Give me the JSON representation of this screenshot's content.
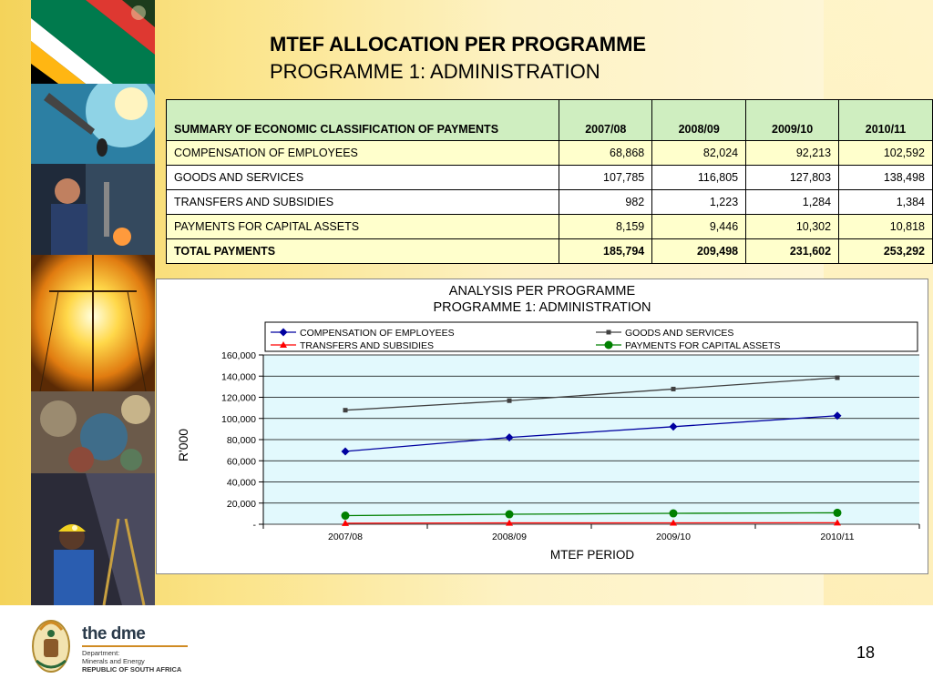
{
  "slide": {
    "title": "MTEF ALLOCATION PER PROGRAMME",
    "subtitle": "PROGRAMME 1: ADMINISTRATION",
    "page_number": "18"
  },
  "footer": {
    "brand_prefix": "the ",
    "brand_name": "dme",
    "dept_line1": "Department:",
    "dept_line2": "Minerals and Energy",
    "dept_line3": "REPUBLIC OF SOUTH AFRICA"
  },
  "table": {
    "header": "SUMMARY OF ECONOMIC CLASSIFICATION OF PAYMENTS",
    "columns": [
      "2007/08",
      "2008/09",
      "2009/10",
      "2010/11"
    ],
    "rows": [
      {
        "label": "COMPENSATION OF EMPLOYEES",
        "values": [
          "68,868",
          "82,024",
          "92,213",
          "102,592"
        ]
      },
      {
        "label": "GOODS AND SERVICES",
        "values": [
          "107,785",
          "116,805",
          "127,803",
          "138,498"
        ]
      },
      {
        "label": "TRANSFERS AND SUBSIDIES",
        "values": [
          "982",
          "1,223",
          "1,284",
          "1,384"
        ]
      },
      {
        "label": "PAYMENTS FOR CAPITAL ASSETS",
        "values": [
          "8,159",
          "9,446",
          "10,302",
          "10,818"
        ]
      }
    ],
    "total": {
      "label": "TOTAL PAYMENTS",
      "values": [
        "185,794",
        "209,498",
        "231,602",
        "253,292"
      ]
    }
  },
  "colors": {
    "header_green": "#cfeec0",
    "row_yellow": "#ffffcc",
    "plot_bg": "#e2f9fd",
    "compensation": "#0000a0",
    "goods": "#404040",
    "transfers": "#ff0000",
    "capital": "#008000"
  },
  "chart_data": {
    "type": "line",
    "title": "ANALYSIS PER PROGRAMME",
    "subtitle": "PROGRAMME 1: ADMINISTRATION",
    "xlabel": "MTEF PERIOD",
    "ylabel": "R'000",
    "categories": [
      "2007/08",
      "2008/09",
      "2009/10",
      "2010/11"
    ],
    "ylim": [
      0,
      160000
    ],
    "yticks": [
      0,
      20000,
      40000,
      60000,
      80000,
      100000,
      120000,
      140000,
      160000
    ],
    "ytick_labels": [
      "-",
      "20,000",
      "40,000",
      "60,000",
      "80,000",
      "100,000",
      "120,000",
      "140,000",
      "160,000"
    ],
    "grid": true,
    "legend": "top",
    "series": [
      {
        "name": "COMPENSATION OF EMPLOYEES",
        "values": [
          68868,
          82024,
          92213,
          102592
        ],
        "color": "#0000a0",
        "marker": "diamond"
      },
      {
        "name": "GOODS AND SERVICES",
        "values": [
          107785,
          116805,
          127803,
          138498
        ],
        "color": "#404040",
        "marker": "square"
      },
      {
        "name": "TRANSFERS AND SUBSIDIES",
        "values": [
          982,
          1223,
          1284,
          1384
        ],
        "color": "#ff0000",
        "marker": "triangle"
      },
      {
        "name": "PAYMENTS FOR CAPITAL ASSETS",
        "values": [
          8159,
          9446,
          10302,
          10818
        ],
        "color": "#008000",
        "marker": "circle"
      }
    ]
  }
}
